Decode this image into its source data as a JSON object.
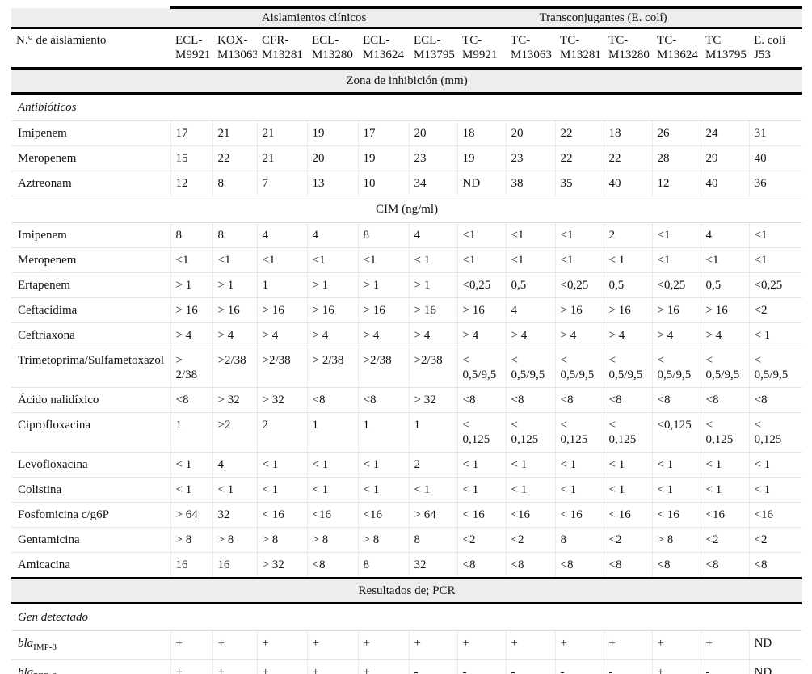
{
  "table": {
    "group_headers": [
      {
        "label": "Aislamientos clínicos",
        "span": 6
      },
      {
        "label": "Transconjugantes (E. colí)",
        "span": 6
      }
    ],
    "row_header_label": "N.° de aislamiento",
    "columns": [
      "ECL-\nM9921",
      "KOX-\nM13063",
      "CFR-\nM13281",
      "ECL-\nM13280",
      "ECL-\nM13624",
      "ECL-\nM13795",
      "TC-\nM9921",
      "TC-\nM13063",
      "TC-\nM13281",
      "TC-\nM13280",
      "TC-\nM13624",
      "TC\nM13795",
      "E. colí\nJ53"
    ],
    "sections": [
      {
        "kind": "band",
        "style": "thick",
        "label": "Zona de inhibición (mm)"
      },
      {
        "kind": "subhead",
        "label": "Antibióticos"
      },
      {
        "kind": "data",
        "label": "Imipenem",
        "values": [
          "17",
          "21",
          "21",
          "19",
          "17",
          "20",
          "18",
          "20",
          "22",
          "18",
          "26",
          "24",
          "31"
        ]
      },
      {
        "kind": "data",
        "label": "Meropenem",
        "values": [
          "15",
          "22",
          "21",
          "20",
          "19",
          "23",
          "19",
          "23",
          "22",
          "22",
          "28",
          "29",
          "40"
        ]
      },
      {
        "kind": "data",
        "label": "Aztreonam",
        "values": [
          "12",
          "8",
          "7",
          "13",
          "10",
          "34",
          "ND",
          "38",
          "35",
          "40",
          "12",
          "40",
          "36"
        ]
      },
      {
        "kind": "band",
        "style": "thin",
        "label": "CIM (ng/ml)"
      },
      {
        "kind": "data",
        "label": "Imipenem",
        "values": [
          "8",
          "8",
          "4",
          "4",
          "8",
          "4",
          "<1",
          "<1",
          "<1",
          "2",
          "<1",
          "4",
          "<1"
        ]
      },
      {
        "kind": "data",
        "label": "Meropenem",
        "values": [
          "<1",
          "<1",
          "<1",
          "<1",
          "<1",
          "< 1",
          "<1",
          "<1",
          "<1",
          "< 1",
          "<1",
          "<1",
          "<1"
        ]
      },
      {
        "kind": "data",
        "label": "Ertapenem",
        "values": [
          "> 1",
          "> 1",
          "1",
          "> 1",
          "> 1",
          "> 1",
          "<0,25",
          "0,5",
          "<0,25",
          "0,5",
          "<0,25",
          "0,5",
          "<0,25"
        ]
      },
      {
        "kind": "data",
        "label": "Ceftacidima",
        "values": [
          "> 16",
          "> 16",
          "> 16",
          "> 16",
          "> 16",
          "> 16",
          "> 16",
          "4",
          "> 16",
          "> 16",
          "> 16",
          "> 16",
          "<2"
        ]
      },
      {
        "kind": "data",
        "label": "Ceftriaxona",
        "values": [
          "> 4",
          "> 4",
          "> 4",
          "> 4",
          "> 4",
          "> 4",
          "> 4",
          "> 4",
          "> 4",
          "> 4",
          "> 4",
          "> 4",
          "< 1"
        ]
      },
      {
        "kind": "data",
        "label": "Trimetoprima/Sulfametoxazol",
        "values": [
          ">\n2/38",
          ">2/38",
          ">2/38",
          "> 2/38",
          ">2/38",
          ">2/38",
          "<\n0,5/9,5",
          "<\n0,5/9,5",
          "<\n0,5/9,5",
          "<\n0,5/9,5",
          "<\n0,5/9,5",
          "<\n0,5/9,5",
          "<\n0,5/9,5"
        ]
      },
      {
        "kind": "data",
        "label": "Ácido nalidíxico",
        "values": [
          "<8",
          "> 32",
          "> 32",
          "<8",
          "<8",
          "> 32",
          "<8",
          "<8",
          "<8",
          "<8",
          "<8",
          "<8",
          "<8"
        ]
      },
      {
        "kind": "data",
        "label": "Ciprofloxacina",
        "values": [
          "1",
          ">2",
          "2",
          "1",
          "1",
          "1",
          "<\n0,125",
          "<\n0,125",
          "<\n0,125",
          "<\n0,125",
          "<0,125",
          "<\n0,125",
          "<\n0,125"
        ]
      },
      {
        "kind": "data",
        "label": "Levofloxacina",
        "values": [
          "< 1",
          "4",
          "< 1",
          "< 1",
          "< 1",
          "2",
          "< 1",
          "< 1",
          "< 1",
          "< 1",
          "< 1",
          "< 1",
          "< 1"
        ]
      },
      {
        "kind": "data",
        "label": "Colistina",
        "values": [
          "< 1",
          "< 1",
          "< 1",
          "< 1",
          "< 1",
          "< 1",
          "< 1",
          "< 1",
          "< 1",
          "< 1",
          "< 1",
          "< 1",
          "< 1"
        ]
      },
      {
        "kind": "data",
        "label": "Fosfomicina c/g6P",
        "values": [
          "> 64",
          "32",
          "< 16",
          "<16",
          "<16",
          "> 64",
          "< 16",
          "<16",
          "< 16",
          "< 16",
          "< 16",
          "<16",
          "<16"
        ]
      },
      {
        "kind": "data",
        "label": "Gentamicina",
        "values": [
          "> 8",
          "> 8",
          "> 8",
          "> 8",
          "> 8",
          "8",
          "<2",
          "<2",
          "8",
          "<2",
          "> 8",
          "<2",
          "<2"
        ]
      },
      {
        "kind": "data",
        "label": "Amicacina",
        "values": [
          "16",
          "16",
          "> 32",
          "<8",
          "8",
          "32",
          "<8",
          "<8",
          "<8",
          "<8",
          "<8",
          "<8",
          "<8"
        ]
      },
      {
        "kind": "band",
        "style": "thick",
        "label": "Resultados de; PCR"
      },
      {
        "kind": "subhead",
        "label": "Gen detectado"
      },
      {
        "kind": "gene",
        "gene": "bla",
        "sub": "IMP-8",
        "values": [
          "+",
          "+",
          "+",
          "+",
          "+",
          "+",
          "+",
          "+",
          "+",
          "+",
          "+",
          "+",
          "ND"
        ]
      },
      {
        "kind": "gene",
        "gene": "bla",
        "sub": "PER-2",
        "values": [
          "+",
          "+",
          "+",
          "+",
          "+",
          "-",
          "-",
          "-",
          "-",
          "-",
          "+",
          "-",
          "ND"
        ]
      }
    ]
  }
}
